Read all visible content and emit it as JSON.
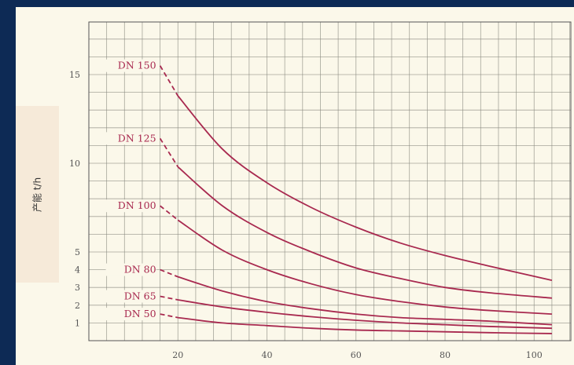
{
  "chart_data": {
    "type": "line",
    "title": "",
    "xlabel": "",
    "ylabel": "产能 t/h",
    "xlim": [
      0,
      105
    ],
    "ylim": [
      0,
      18
    ],
    "x_ticks": [
      20,
      40,
      60,
      80,
      100
    ],
    "y_ticks": [
      1,
      2,
      3,
      4,
      5,
      10,
      15
    ],
    "grid": true,
    "colors": {
      "line": "#a8294f",
      "grid": "#8a8a80",
      "label": "#a8294f"
    },
    "series": [
      {
        "name": "DN 150",
        "dashed_segment": [
          [
            16,
            15.5
          ],
          [
            20,
            13.8
          ]
        ],
        "x": [
          20,
          30,
          40,
          50,
          60,
          70,
          80,
          90,
          104
        ],
        "y": [
          13.8,
          10.8,
          8.9,
          7.5,
          6.4,
          5.5,
          4.8,
          4.2,
          3.4
        ]
      },
      {
        "name": "DN 125",
        "dashed_segment": [
          [
            16,
            11.4
          ],
          [
            20,
            9.8
          ]
        ],
        "x": [
          20,
          30,
          40,
          50,
          60,
          70,
          80,
          90,
          104
        ],
        "y": [
          9.8,
          7.6,
          6.1,
          5.0,
          4.1,
          3.5,
          3.0,
          2.7,
          2.4
        ]
      },
      {
        "name": "DN 100",
        "dashed_segment": [
          [
            16,
            7.6
          ],
          [
            20,
            6.8
          ]
        ],
        "x": [
          20,
          30,
          40,
          50,
          60,
          70,
          80,
          90,
          104
        ],
        "y": [
          6.8,
          5.1,
          4.0,
          3.2,
          2.6,
          2.2,
          1.9,
          1.7,
          1.5
        ]
      },
      {
        "name": "DN 80",
        "dashed_segment": [
          [
            16,
            4.0
          ],
          [
            20,
            3.6
          ]
        ],
        "x": [
          20,
          30,
          40,
          50,
          60,
          70,
          80,
          90,
          104
        ],
        "y": [
          3.6,
          2.8,
          2.2,
          1.8,
          1.5,
          1.3,
          1.2,
          1.1,
          0.9
        ]
      },
      {
        "name": "DN 65",
        "dashed_segment": [
          [
            16,
            2.5
          ],
          [
            20,
            2.3
          ]
        ],
        "x": [
          20,
          30,
          40,
          50,
          60,
          70,
          80,
          90,
          104
        ],
        "y": [
          2.3,
          1.9,
          1.6,
          1.35,
          1.15,
          1.0,
          0.9,
          0.8,
          0.7
        ]
      },
      {
        "name": "DN 50",
        "dashed_segment": [
          [
            16,
            1.5
          ],
          [
            20,
            1.3
          ]
        ],
        "x": [
          20,
          30,
          40,
          50,
          60,
          70,
          80,
          90,
          104
        ],
        "y": [
          1.3,
          1.0,
          0.85,
          0.7,
          0.6,
          0.55,
          0.5,
          0.45,
          0.4
        ]
      }
    ]
  }
}
